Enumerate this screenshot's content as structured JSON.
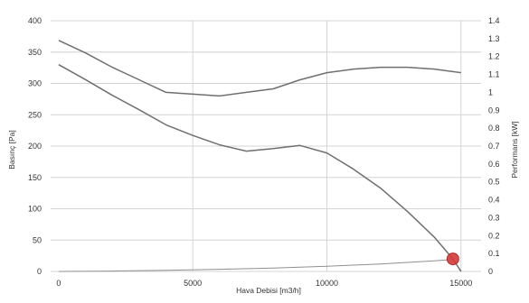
{
  "chart_data": {
    "type": "line",
    "xlabel": "Hava Debisi [m3/h]",
    "ylabel": "Basınç [Pa]",
    "y2label": "Performans [kW]",
    "xlim": [
      -300,
      15750
    ],
    "ylim": [
      0,
      400
    ],
    "y2lim": [
      0,
      1.4
    ],
    "x_ticks": [
      "0",
      "5000",
      "10000",
      "15000"
    ],
    "y_ticks": [
      "0",
      "50",
      "100",
      "150",
      "200",
      "250",
      "300",
      "350",
      "400"
    ],
    "y2_ticks": [
      "0",
      "0.1",
      "0.2",
      "0.3",
      "0.4",
      "0.5",
      "0.6",
      "0.7",
      "0.8",
      "0.9",
      "1",
      "1.1",
      "1.2",
      "1.3",
      "1.4"
    ],
    "grid": true,
    "series": [
      {
        "axis": "left",
        "x": [
          0,
          1000,
          2000,
          3000,
          4000,
          5000,
          6000,
          7000,
          8000,
          9000,
          10000,
          11000,
          12000,
          13000,
          14000,
          14700,
          15000
        ],
        "values": [
          330,
          306,
          281,
          258,
          234,
          217,
          202,
          192,
          196,
          201,
          189,
          163,
          133,
          96,
          55,
          20,
          0
        ],
        "color": "#6f6f6f"
      },
      {
        "axis": "right",
        "x": [
          0,
          1000,
          2000,
          3000,
          4000,
          5000,
          6000,
          7000,
          8000,
          9000,
          10000,
          11000,
          12000,
          13000,
          14000,
          15000
        ],
        "values": [
          1.29,
          1.22,
          1.14,
          1.07,
          1.0,
          0.99,
          0.98,
          1.0,
          1.02,
          1.07,
          1.11,
          1.13,
          1.14,
          1.14,
          1.13,
          1.11
        ],
        "color": "#6f6f6f"
      },
      {
        "axis": "left",
        "x": [
          0,
          2000,
          4000,
          6000,
          8000,
          10000,
          12000,
          14000,
          14700
        ],
        "values": [
          0,
          0.6,
          1.8,
          3.4,
          5.5,
          8.4,
          12,
          16.8,
          19
        ],
        "color": "#8f8f8f"
      }
    ],
    "operating_point": {
      "x": 14700,
      "y": 20,
      "color": "#d63a3a"
    }
  }
}
